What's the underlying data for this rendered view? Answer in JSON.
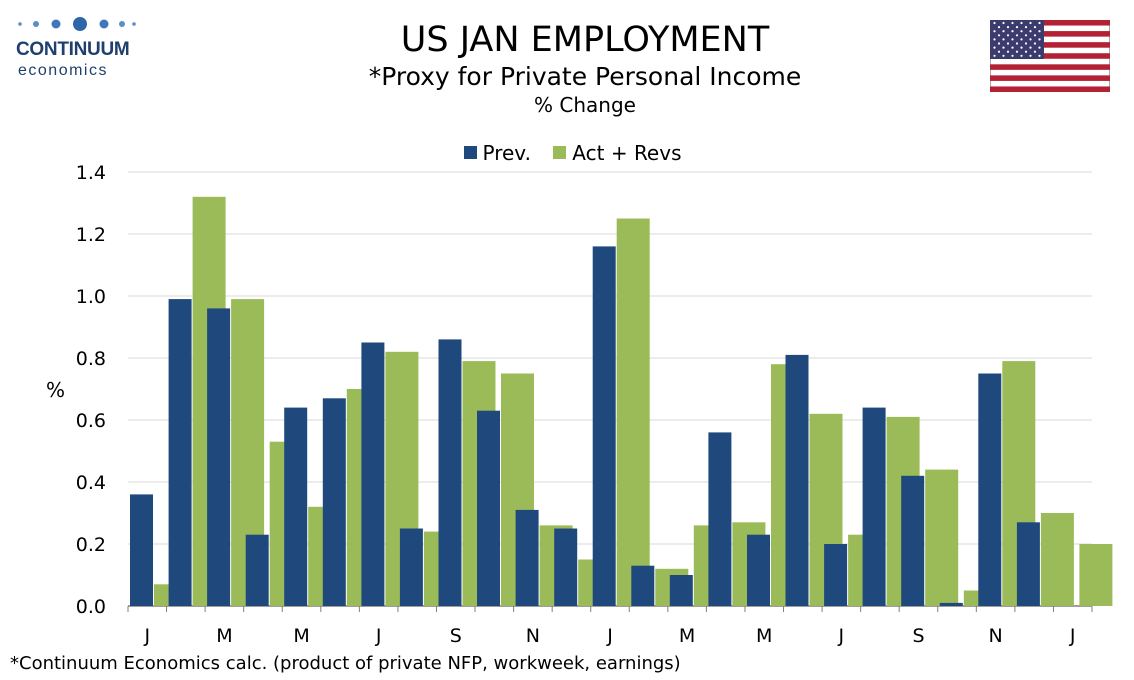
{
  "logo": {
    "line1": "CONTINUUM",
    "line2": "economics"
  },
  "header": {
    "title": "US JAN EMPLOYMENT",
    "subtitle": "*Proxy for Private Personal Income",
    "subtitle2": "% Change"
  },
  "flag_icon": "us-flag-icon",
  "footnote": "*Continuum Economics calc. (product of private NFP, workweek, earnings)",
  "colors": {
    "prev": "#1f497d",
    "act": "#9bbb59",
    "grid": "#d9d9d9",
    "axis": "#7f7f7f"
  },
  "chart_data": {
    "type": "bar",
    "ylabel": "%",
    "ylim": [
      0,
      1.4
    ],
    "yticks": [
      "0.0",
      "0.2",
      "0.4",
      "0.6",
      "0.8",
      "1.0",
      "1.2",
      "1.4"
    ],
    "x_tick_labels": [
      "J",
      "M",
      "M",
      "J",
      "S",
      "N",
      "J",
      "M",
      "M",
      "J",
      "S",
      "N",
      "J"
    ],
    "grid": true,
    "legend_position": "top",
    "series": [
      {
        "name": "Prev.",
        "values": [
          0.36,
          0.99,
          0.96,
          0.23,
          0.64,
          0.67,
          0.85,
          0.25,
          0.86,
          0.63,
          0.31,
          0.25,
          1.16,
          0.13,
          0.1,
          0.56,
          0.23,
          0.81,
          0.2,
          0.64,
          0.42,
          0.01,
          0.75,
          0.27,
          null
        ]
      },
      {
        "name": "Act + Revs",
        "values": [
          0.07,
          1.32,
          0.99,
          0.53,
          0.32,
          0.7,
          0.82,
          0.24,
          0.79,
          0.75,
          0.26,
          0.15,
          1.25,
          0.12,
          0.26,
          0.27,
          0.78,
          0.62,
          0.23,
          0.61,
          0.44,
          0.05,
          0.79,
          0.3,
          0.2
        ]
      }
    ]
  }
}
